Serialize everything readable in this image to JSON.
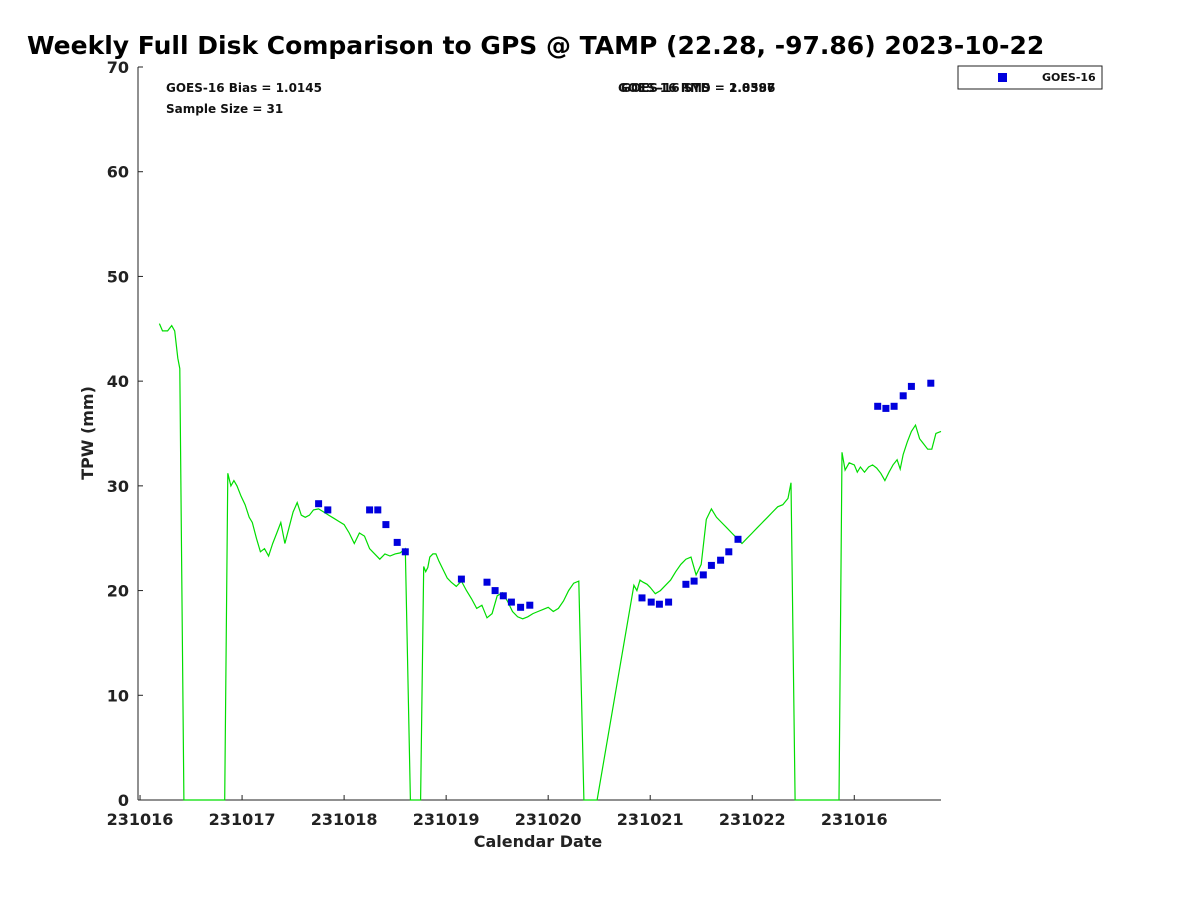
{
  "chart_data": {
    "type": "scatter",
    "title": "Weekly Full Disk Comparison to GPS @ TAMP (22.28, -97.86) 2023-10-22",
    "xlabel": "Calendar Date",
    "ylabel": "TPW (mm)",
    "xlim": [
      -0.02,
      7.85
    ],
    "ylim": [
      0,
      70
    ],
    "yticks": [
      0,
      10,
      20,
      30,
      40,
      50,
      60,
      70
    ],
    "xticks": [
      {
        "value": 0,
        "label": "231016"
      },
      {
        "value": 1,
        "label": "231017"
      },
      {
        "value": 2,
        "label": "231018"
      },
      {
        "value": 3,
        "label": "231019"
      },
      {
        "value": 4,
        "label": "231020"
      },
      {
        "value": 5,
        "label": "231021"
      },
      {
        "value": 6,
        "label": "231022"
      },
      {
        "value": 7,
        "label": "231016"
      }
    ],
    "annotations": [
      {
        "id": "bias",
        "text": "GOES-16 Bias = 1.0145"
      },
      {
        "id": "sample",
        "text": "Sample Size = 31"
      },
      {
        "id": "rms-a",
        "text": "GOES-16 RMS = 2.0386"
      },
      {
        "id": "rms-b",
        "text": "GOES-16 STD = 1.8597"
      }
    ],
    "legend": {
      "position": "top-right",
      "entries": [
        {
          "name": "GOES-16",
          "color": "#0000dd",
          "marker": "square"
        }
      ]
    },
    "series": [
      {
        "name": "GPS",
        "color": "#00dd00",
        "kind": "line",
        "x": [
          0.19,
          0.22,
          0.27,
          0.31,
          0.34,
          0.37,
          0.39,
          0.41,
          0.43,
          0.48,
          0.83,
          0.86,
          0.89,
          0.92,
          0.95,
          0.99,
          1.03,
          1.07,
          1.1,
          1.14,
          1.18,
          1.22,
          1.26,
          1.3,
          1.34,
          1.38,
          1.42,
          1.46,
          1.5,
          1.54,
          1.58,
          1.62,
          1.66,
          1.7,
          1.75,
          1.8,
          1.85,
          1.9,
          1.95,
          2.0,
          2.05,
          2.1,
          2.15,
          2.2,
          2.25,
          2.3,
          2.35,
          2.4,
          2.45,
          2.5,
          2.55,
          2.6,
          2.65,
          2.7,
          2.75,
          2.78,
          2.8,
          2.82,
          2.84,
          2.87,
          2.9,
          2.93,
          2.97,
          3.01,
          3.05,
          3.1,
          3.15,
          3.2,
          3.25,
          3.3,
          3.35,
          3.4,
          3.45,
          3.5,
          3.55,
          3.6,
          3.65,
          3.7,
          3.75,
          3.8,
          3.85,
          3.9,
          3.95,
          4.0,
          4.05,
          4.1,
          4.15,
          4.2,
          4.25,
          4.3,
          4.35,
          4.4,
          4.45,
          4.48,
          4.84,
          4.87,
          4.9,
          4.93,
          4.97,
          5.0,
          5.05,
          5.1,
          5.15,
          5.2,
          5.25,
          5.3,
          5.35,
          5.4,
          5.45,
          5.5,
          5.55,
          5.6,
          5.65,
          5.7,
          5.75,
          5.8,
          5.85,
          5.9,
          5.95,
          6.0,
          6.05,
          6.1,
          6.15,
          6.2,
          6.25,
          6.3,
          6.35,
          6.38,
          6.42,
          6.85,
          6.88,
          6.91,
          6.95,
          7.0,
          7.03,
          7.06,
          7.1,
          7.14,
          7.18,
          7.22,
          7.26,
          7.3,
          7.34,
          7.38,
          7.42,
          7.45,
          7.48,
          7.52,
          7.56,
          7.6,
          7.64,
          7.68,
          7.72,
          7.76,
          7.8,
          7.85
        ],
        "y": [
          45.5,
          44.8,
          44.8,
          45.3,
          44.8,
          42.2,
          41.2,
          20.0,
          0,
          0,
          0,
          31.2,
          30.0,
          30.5,
          30.0,
          29.0,
          28.2,
          27.0,
          26.5,
          25.0,
          23.7,
          24.0,
          23.3,
          24.5,
          25.5,
          26.5,
          24.5,
          26.0,
          27.5,
          28.4,
          27.2,
          27.0,
          27.2,
          27.7,
          27.8,
          27.5,
          27.2,
          26.9,
          26.6,
          26.3,
          25.5,
          24.5,
          25.5,
          25.2,
          24.0,
          23.5,
          23.0,
          23.5,
          23.3,
          23.5,
          23.6,
          24.0,
          0,
          0,
          0,
          22.3,
          21.8,
          22.2,
          23.2,
          23.5,
          23.5,
          22.8,
          22.0,
          21.2,
          20.8,
          20.4,
          20.9,
          20.0,
          19.2,
          18.3,
          18.6,
          17.4,
          17.8,
          19.5,
          19.8,
          19.0,
          18.0,
          17.5,
          17.3,
          17.5,
          17.8,
          18.0,
          18.2,
          18.4,
          18.0,
          18.3,
          19.0,
          20.0,
          20.7,
          20.9,
          0,
          0,
          0,
          0,
          20.5,
          20.0,
          21.0,
          20.8,
          20.6,
          20.3,
          19.7,
          20.0,
          20.5,
          21.0,
          21.8,
          22.5,
          23.0,
          23.2,
          21.5,
          22.5,
          26.8,
          27.8,
          27.0,
          26.5,
          26.0,
          25.5,
          25.0,
          24.5,
          25.0,
          25.5,
          26.0,
          26.5,
          27.0,
          27.5,
          28.0,
          28.2,
          28.8,
          30.3,
          0,
          0,
          33.2,
          31.5,
          32.2,
          32.0,
          31.3,
          31.8,
          31.3,
          31.8,
          32.0,
          31.7,
          31.2,
          30.5,
          31.3,
          32.0,
          32.5,
          31.6,
          33.0,
          34.2,
          35.2,
          35.8,
          34.5,
          34.0,
          33.5,
          33.5,
          35.0,
          35.2
        ]
      },
      {
        "name": "GOES-16",
        "color": "#0000dd",
        "kind": "scatter",
        "x": [
          1.75,
          1.84,
          2.25,
          2.33,
          2.41,
          2.52,
          2.6,
          3.15,
          3.4,
          3.48,
          3.56,
          3.64,
          3.73,
          3.82,
          4.92,
          5.01,
          5.09,
          5.18,
          5.35,
          5.43,
          5.52,
          5.6,
          5.69,
          5.77,
          5.86,
          7.23,
          7.31,
          7.39,
          7.48,
          7.56,
          7.75
        ],
        "y": [
          28.3,
          27.7,
          27.7,
          27.7,
          26.3,
          24.6,
          23.7,
          21.1,
          20.8,
          20.0,
          19.5,
          18.9,
          18.4,
          18.6,
          19.3,
          18.9,
          18.7,
          18.9,
          20.6,
          20.9,
          21.5,
          22.4,
          22.9,
          23.7,
          24.9,
          37.6,
          37.4,
          37.6,
          38.6,
          39.5,
          39.8
        ]
      }
    ]
  }
}
